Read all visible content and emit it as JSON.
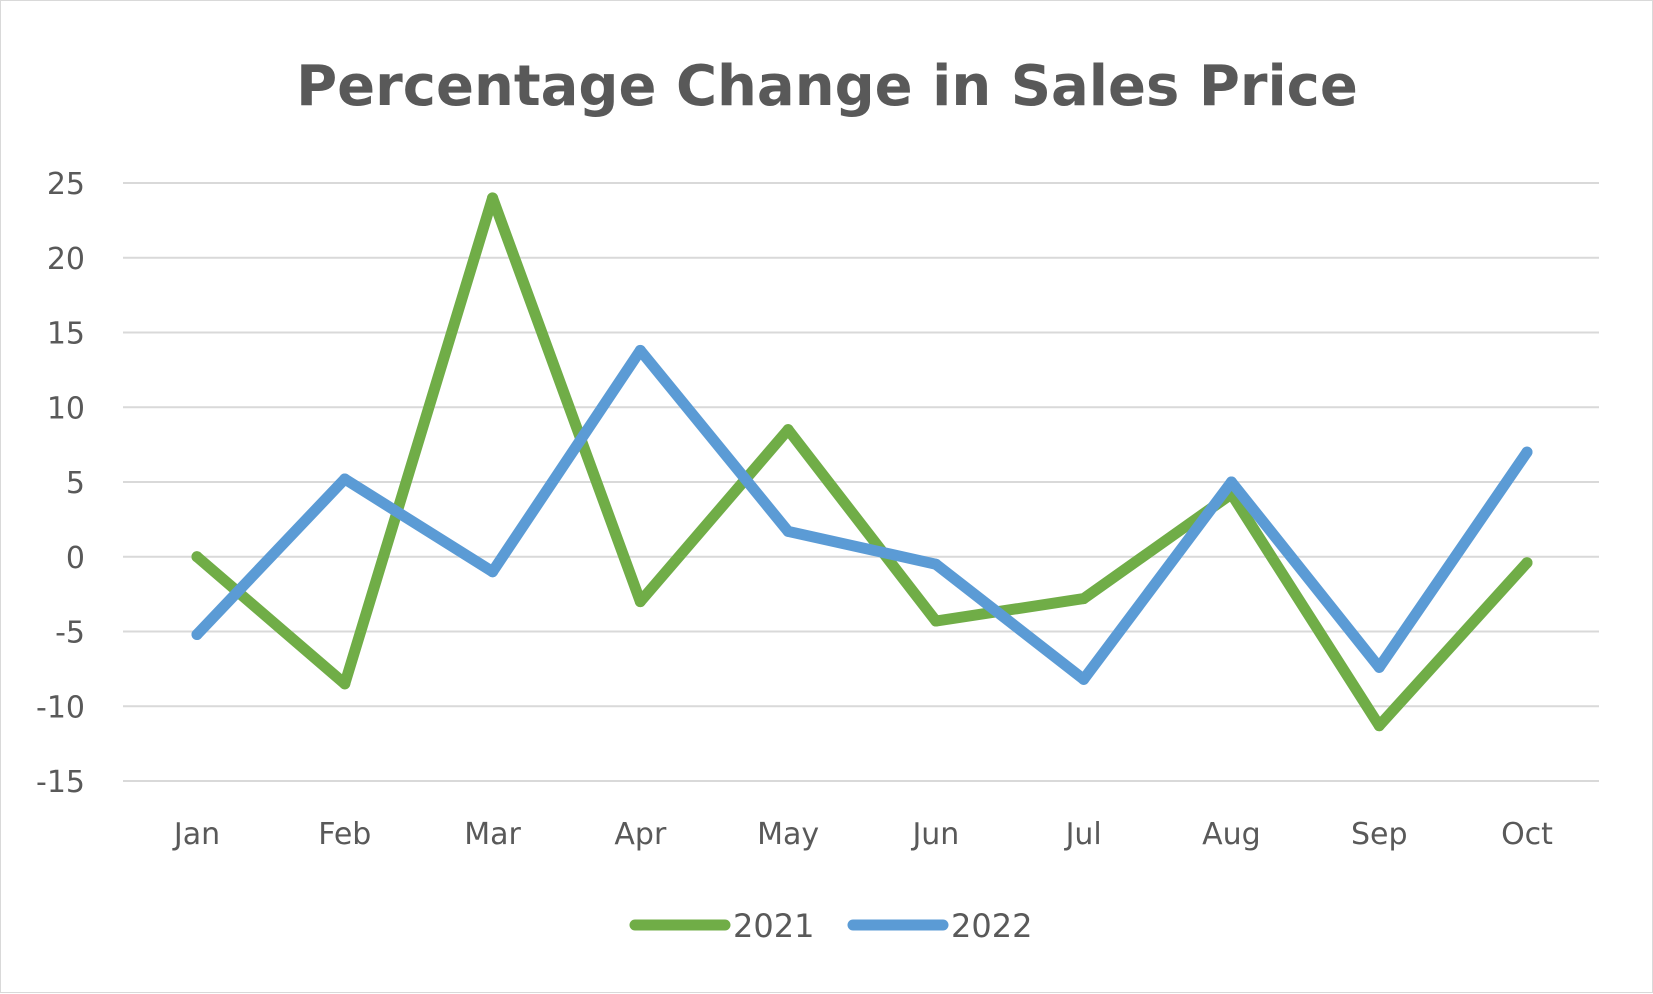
{
  "chart_data": {
    "type": "line",
    "title": "Percentage Change in Sales Price",
    "xlabel": "",
    "ylabel": "",
    "categories": [
      "Jan",
      "Feb",
      "Mar",
      "Apr",
      "May",
      "Jun",
      "Jul",
      "Aug",
      "Sep",
      "Oct"
    ],
    "ylim": [
      -15,
      25
    ],
    "yticks": [
      25,
      20,
      15,
      10,
      5,
      0,
      -5,
      -10,
      -15
    ],
    "grid": true,
    "legend_position": "bottom",
    "series": [
      {
        "name": "2021",
        "color": "#70ad47",
        "values": [
          0,
          -8.5,
          24,
          -3,
          8.5,
          -4.3,
          -2.8,
          4.2,
          -11.3,
          -0.4
        ]
      },
      {
        "name": "2022",
        "color": "#5b9bd5",
        "values": [
          -5.2,
          5.2,
          -1,
          13.8,
          1.7,
          -0.5,
          -8.2,
          5,
          -7.4,
          7
        ]
      }
    ]
  }
}
